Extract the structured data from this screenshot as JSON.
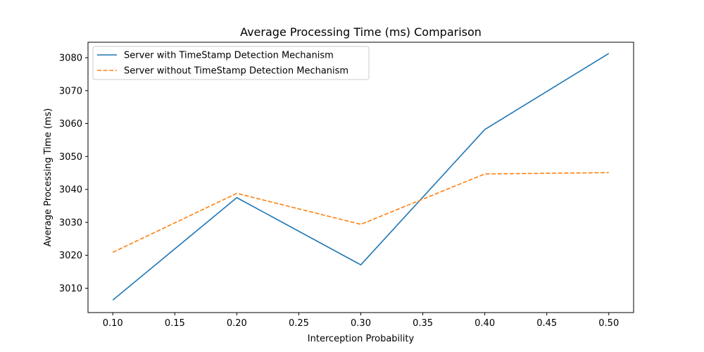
{
  "chart_data": {
    "type": "line",
    "title": "Average Processing Time (ms) Comparison",
    "xlabel": "Interception Probability",
    "ylabel": "Average Processing Time (ms)",
    "xlim": [
      0.08,
      0.52
    ],
    "ylim": [
      3002.6,
      3084.7
    ],
    "x_ticks": [
      0.1,
      0.15,
      0.2,
      0.25,
      0.3,
      0.35,
      0.4,
      0.45,
      0.5
    ],
    "x_tick_labels": [
      "0.10",
      "0.15",
      "0.20",
      "0.25",
      "0.30",
      "0.35",
      "0.40",
      "0.45",
      "0.50"
    ],
    "y_ticks": [
      3010,
      3020,
      3030,
      3040,
      3050,
      3060,
      3070,
      3080
    ],
    "y_tick_labels": [
      "3010",
      "3020",
      "3030",
      "3040",
      "3050",
      "3060",
      "3070",
      "3080"
    ],
    "grid": false,
    "legend_position": "top-left",
    "series": [
      {
        "name": "Server with TimeStamp Detection Mechanism",
        "color": "#1f77b4",
        "dash": "solid",
        "x": [
          0.1,
          0.2,
          0.3,
          0.4,
          0.5
        ],
        "y": [
          3006.4,
          3037.5,
          3017.1,
          3058.2,
          3081.3
        ]
      },
      {
        "name": "Server without TimeStamp Detection Mechanism",
        "color": "#ff7f0e",
        "dash": "dashed",
        "x": [
          0.1,
          0.2,
          0.3,
          0.4,
          0.5
        ],
        "y": [
          3020.9,
          3038.8,
          3029.4,
          3044.7,
          3045.1
        ]
      }
    ]
  }
}
